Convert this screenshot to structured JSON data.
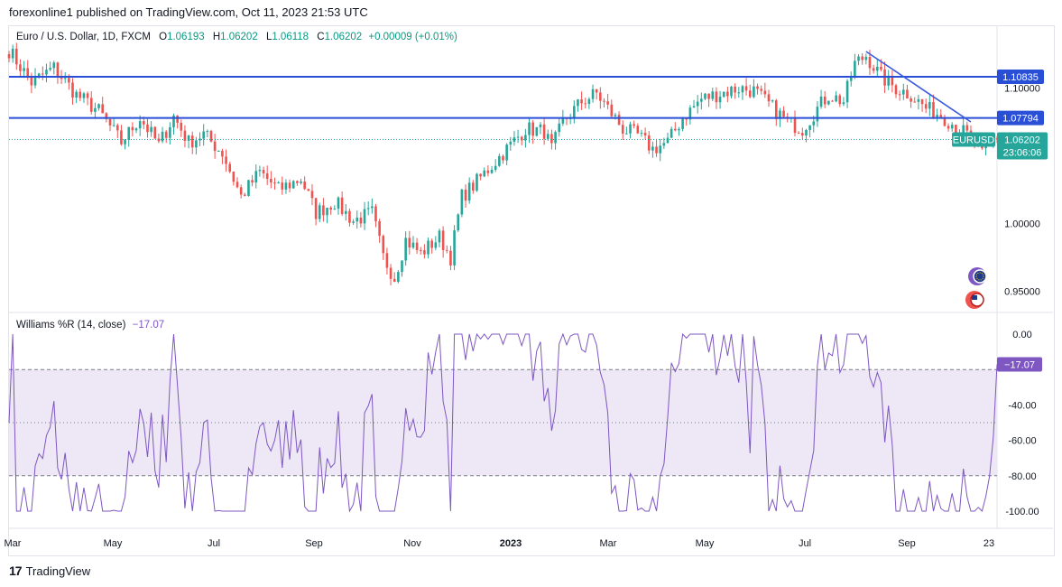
{
  "header": {
    "published": "forexonline1 published on TradingView.com, Oct 11, 2023 21:53 UTC"
  },
  "legend": {
    "symbol": "Euro / U.S. Dollar, 1D, FXCM",
    "open_label": "O",
    "open": "1.06193",
    "high_label": "H",
    "high": "1.06202",
    "low_label": "L",
    "low": "1.06118",
    "close_label": "C",
    "close": "1.06202",
    "change": "+0.00009 (+0.01%)"
  },
  "indicator": {
    "name": "Williams %R (14, close)",
    "value": "−17.07"
  },
  "footer": {
    "brand": "TradingView",
    "logo_text": "17"
  },
  "colors": {
    "up": "#26a69a",
    "down": "#ef5350",
    "level": "#2a4fd7",
    "trend": "#3b5bdb",
    "wr_line": "#7e57c2",
    "wr_band": "#ede7f6",
    "price_tag": "#26a69a"
  },
  "chart_data": [
    {
      "type": "candlestick",
      "title": "Euro / U.S. Dollar, 1D, FXCM",
      "x_ticks": [
        "Mar",
        "May",
        "Jul",
        "Sep",
        "Nov",
        "2023",
        "Mar",
        "May",
        "Jul",
        "Sep",
        "23"
      ],
      "y_ticks": [
        "1.10000",
        "1.00000",
        "0.95000"
      ],
      "ylim": [
        0.935,
        1.145
      ],
      "horizontal_levels": [
        {
          "label": "1.10835",
          "value": 1.10835
        },
        {
          "label": "1.07794",
          "value": 1.07794
        }
      ],
      "current_price": {
        "symbol": "EURUSD",
        "label": "1.06202",
        "countdown": "23:06:06",
        "value": 1.06202
      },
      "trendline": {
        "from_value": 1.127,
        "to_value": 1.075
      },
      "close_path": [
        [
          0,
          1.128
        ],
        [
          6,
          1.104
        ],
        [
          12,
          1.115
        ],
        [
          18,
          1.095
        ],
        [
          24,
          1.083
        ],
        [
          30,
          1.06
        ],
        [
          35,
          1.078
        ],
        [
          40,
          1.058
        ],
        [
          44,
          1.079
        ],
        [
          48,
          1.06
        ],
        [
          52,
          1.066
        ],
        [
          57,
          1.052
        ],
        [
          62,
          1.02
        ],
        [
          67,
          1.038
        ],
        [
          72,
          1.025
        ],
        [
          78,
          1.033
        ],
        [
          82,
          1.008
        ],
        [
          87,
          1.016
        ],
        [
          92,
          1.002
        ],
        [
          97,
          1.008
        ],
        [
          100,
          0.975
        ],
        [
          103,
          0.96
        ],
        [
          106,
          0.988
        ],
        [
          110,
          0.978
        ],
        [
          115,
          0.99
        ],
        [
          118,
          0.975
        ],
        [
          121,
          1.02
        ],
        [
          124,
          1.028
        ],
        [
          128,
          1.04
        ],
        [
          133,
          1.055
        ],
        [
          138,
          1.07
        ],
        [
          143,
          1.068
        ],
        [
          145,
          1.055
        ],
        [
          148,
          1.075
        ],
        [
          153,
          1.09
        ],
        [
          157,
          1.096
        ],
        [
          160,
          1.085
        ],
        [
          164,
          1.07
        ],
        [
          168,
          1.065
        ],
        [
          172,
          1.055
        ],
        [
          176,
          1.06
        ],
        [
          180,
          1.078
        ],
        [
          185,
          1.092
        ],
        [
          190,
          1.096
        ],
        [
          195,
          1.1
        ],
        [
          199,
          1.098
        ],
        [
          203,
          1.088
        ],
        [
          208,
          1.075
        ],
        [
          212,
          1.07
        ],
        [
          216,
          1.085
        ],
        [
          219,
          1.095
        ],
        [
          223,
          1.09
        ],
        [
          226,
          1.118
        ],
        [
          229,
          1.124
        ],
        [
          233,
          1.108
        ],
        [
          237,
          1.1
        ],
        [
          241,
          1.095
        ],
        [
          245,
          1.085
        ],
        [
          249,
          1.08
        ],
        [
          253,
          1.072
        ],
        [
          257,
          1.063
        ],
        [
          260,
          1.05
        ],
        [
          263,
          1.062
        ]
      ]
    },
    {
      "type": "line",
      "title": "Williams %R (14, close)",
      "y_ticks": [
        "0.00",
        "-40.00",
        "-60.00",
        "-80.00",
        "-100.00"
      ],
      "ylim": [
        -100,
        0
      ],
      "bands": [
        -20,
        -80
      ],
      "midline": -50,
      "last_value": -17.07,
      "value_label": "−17.07"
    }
  ]
}
